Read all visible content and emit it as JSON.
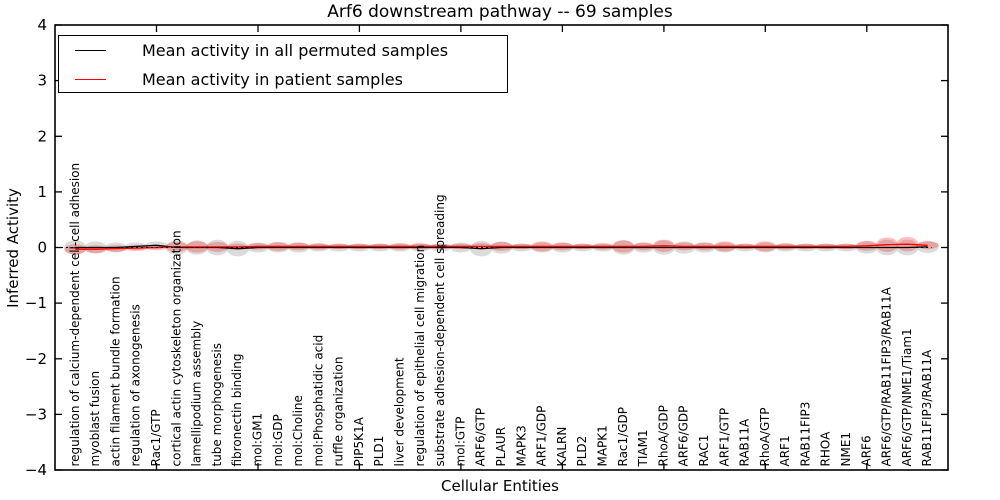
{
  "title": "Arf6 downstream pathway -- 69 samples",
  "xlabel": "Cellular Entities",
  "ylabel": "Inferred Activity",
  "legend": {
    "items": [
      {
        "label": "Mean activity in all permuted samples",
        "color": "#000000"
      },
      {
        "label": "Mean activity in patient samples",
        "color": "#ff0000"
      }
    ]
  },
  "colors": {
    "permuted_line": "#000000",
    "patient_line": "#ff0000",
    "permuted_band": "#999999",
    "patient_band": "#ff0000",
    "axis": "#000000"
  },
  "chart_data": {
    "type": "violin",
    "title": "Arf6 downstream pathway -- 69 samples",
    "xlabel": "Cellular Entities",
    "ylabel": "Inferred Activity",
    "ylim": [
      -4,
      4
    ],
    "xlim": [
      0,
      44
    ],
    "yticks": [
      4,
      3,
      2,
      1,
      0,
      -1,
      -2,
      -3,
      -4
    ],
    "xticks_unlabeled": [
      5,
      10,
      15,
      20,
      25,
      30,
      35,
      40
    ],
    "grid": false,
    "legend_position": "upper left",
    "zero_line": {
      "y": 0,
      "style": "dashed",
      "color": "#000000"
    },
    "categories": [
      "regulation of calcium-dependent cell-cell adhesion",
      "myoblast fusion",
      "actin filament bundle formation",
      "regulation of axonogenesis",
      "Rac1/GTP",
      "cortical actin cytoskeleton organization",
      "lamellipodium assembly",
      "tube morphogenesis",
      "fibronectin binding",
      "mol:GM1",
      "mol:GDP",
      "mol:Choline",
      "mol:Phosphatidic acid",
      "ruffle organization",
      "PIP5K1A",
      "PLD1",
      "liver development",
      "regulation of epithelial cell migration",
      "substrate adhesion-dependent cell spreading",
      "mol:GTP",
      "ARF6/GTP",
      "PLAUR",
      "MAPK3",
      "ARF1/GDP",
      "KALRN",
      "PLD2",
      "MAPK1",
      "Rac1/GDP",
      "TIAM1",
      "RhoA/GDP",
      "ARF6/GDP",
      "RAC1",
      "ARF1/GTP",
      "RAB11A",
      "RhoA/GTP",
      "ARF1",
      "RAB11FIP3",
      "RHOA",
      "NME1",
      "ARF6",
      "ARF6/GTP/RAB11FIP3/RAB11A",
      "ARF6/GTP/NME1/Tiam1",
      "RAB11FIP3/RAB11A"
    ],
    "series": [
      {
        "name": "Mean activity in all permuted samples",
        "color": "#000000",
        "values": [
          0.0,
          0.0,
          0.0,
          0.02,
          0.04,
          0.0,
          0.0,
          0.0,
          -0.02,
          0.0,
          0.0,
          0.0,
          0.0,
          0.0,
          0.0,
          0.0,
          0.0,
          0.0,
          0.0,
          0.0,
          -0.02,
          0.0,
          0.0,
          0.0,
          0.0,
          0.0,
          0.0,
          0.0,
          0.0,
          0.0,
          0.0,
          0.0,
          0.0,
          0.0,
          0.0,
          0.0,
          0.0,
          0.0,
          0.0,
          0.0,
          0.0,
          0.0,
          0.01
        ]
      },
      {
        "name": "Mean activity in patient samples",
        "color": "#ff0000",
        "values": [
          -0.03,
          -0.03,
          -0.02,
          -0.01,
          0.0,
          0.01,
          0.01,
          0.01,
          0.01,
          0.02,
          0.02,
          0.02,
          0.02,
          0.02,
          0.02,
          0.02,
          0.02,
          0.02,
          0.02,
          0.02,
          0.02,
          0.02,
          0.02,
          0.02,
          0.02,
          0.02,
          0.02,
          0.02,
          0.02,
          0.03,
          0.02,
          0.02,
          0.02,
          0.02,
          0.02,
          0.02,
          0.02,
          0.02,
          0.02,
          0.03,
          0.05,
          0.06,
          0.04
        ]
      }
    ],
    "violins": [
      {
        "name": "permuted samples distribution",
        "color": "#999999",
        "opacity": 0.35,
        "half_heights": [
          0.13,
          0.11,
          0.09,
          0.07,
          0.07,
          0.13,
          0.13,
          0.14,
          0.14,
          0.09,
          0.09,
          0.09,
          0.07,
          0.07,
          0.07,
          0.07,
          0.07,
          0.07,
          0.07,
          0.09,
          0.14,
          0.11,
          0.07,
          0.09,
          0.09,
          0.07,
          0.07,
          0.13,
          0.09,
          0.13,
          0.11,
          0.09,
          0.09,
          0.07,
          0.09,
          0.07,
          0.07,
          0.07,
          0.07,
          0.11,
          0.14,
          0.14,
          0.11
        ]
      },
      {
        "name": "patient samples distribution",
        "color": "#ff0000",
        "opacity": 0.25,
        "half_heights": [
          0.09,
          0.07,
          0.06,
          0.05,
          0.05,
          0.09,
          0.1,
          0.09,
          0.06,
          0.06,
          0.08,
          0.07,
          0.06,
          0.05,
          0.05,
          0.05,
          0.06,
          0.06,
          0.05,
          0.05,
          0.06,
          0.08,
          0.05,
          0.09,
          0.07,
          0.05,
          0.06,
          0.11,
          0.07,
          0.11,
          0.07,
          0.07,
          0.09,
          0.05,
          0.09,
          0.06,
          0.05,
          0.05,
          0.05,
          0.09,
          0.13,
          0.13,
          0.07
        ]
      }
    ]
  }
}
